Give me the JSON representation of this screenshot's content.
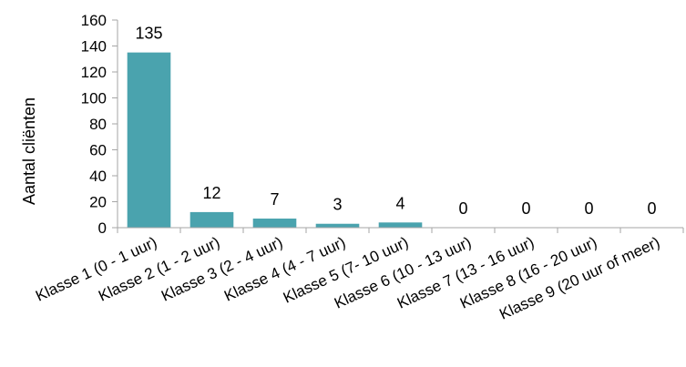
{
  "chart_data": {
    "type": "bar",
    "title": "",
    "xlabel": "",
    "ylabel": "Aantal cliënten",
    "ylim": [
      0,
      160
    ],
    "yticks": [
      0,
      20,
      40,
      60,
      80,
      100,
      120,
      140,
      160
    ],
    "grid": false,
    "legend": "none",
    "bar_color": "#4aa3ae",
    "categories": [
      "Klasse 1 (0 - 1 uur)",
      "Klasse 2 (1 - 2 uur)",
      "Klasse 3 (2 - 4 uur)",
      "Klasse 4 (4 - 7 uur)",
      "Klasse 5 (7- 10 uur)",
      "Klasse 6 (10 - 13 uur)",
      "Klasse 7 (13 - 16 uur)",
      "Klasse 8 (16 - 20 uur)",
      "Klasse 9 (20 uur of meer)"
    ],
    "values": [
      135,
      12,
      7,
      3,
      4,
      0,
      0,
      0,
      0
    ]
  }
}
